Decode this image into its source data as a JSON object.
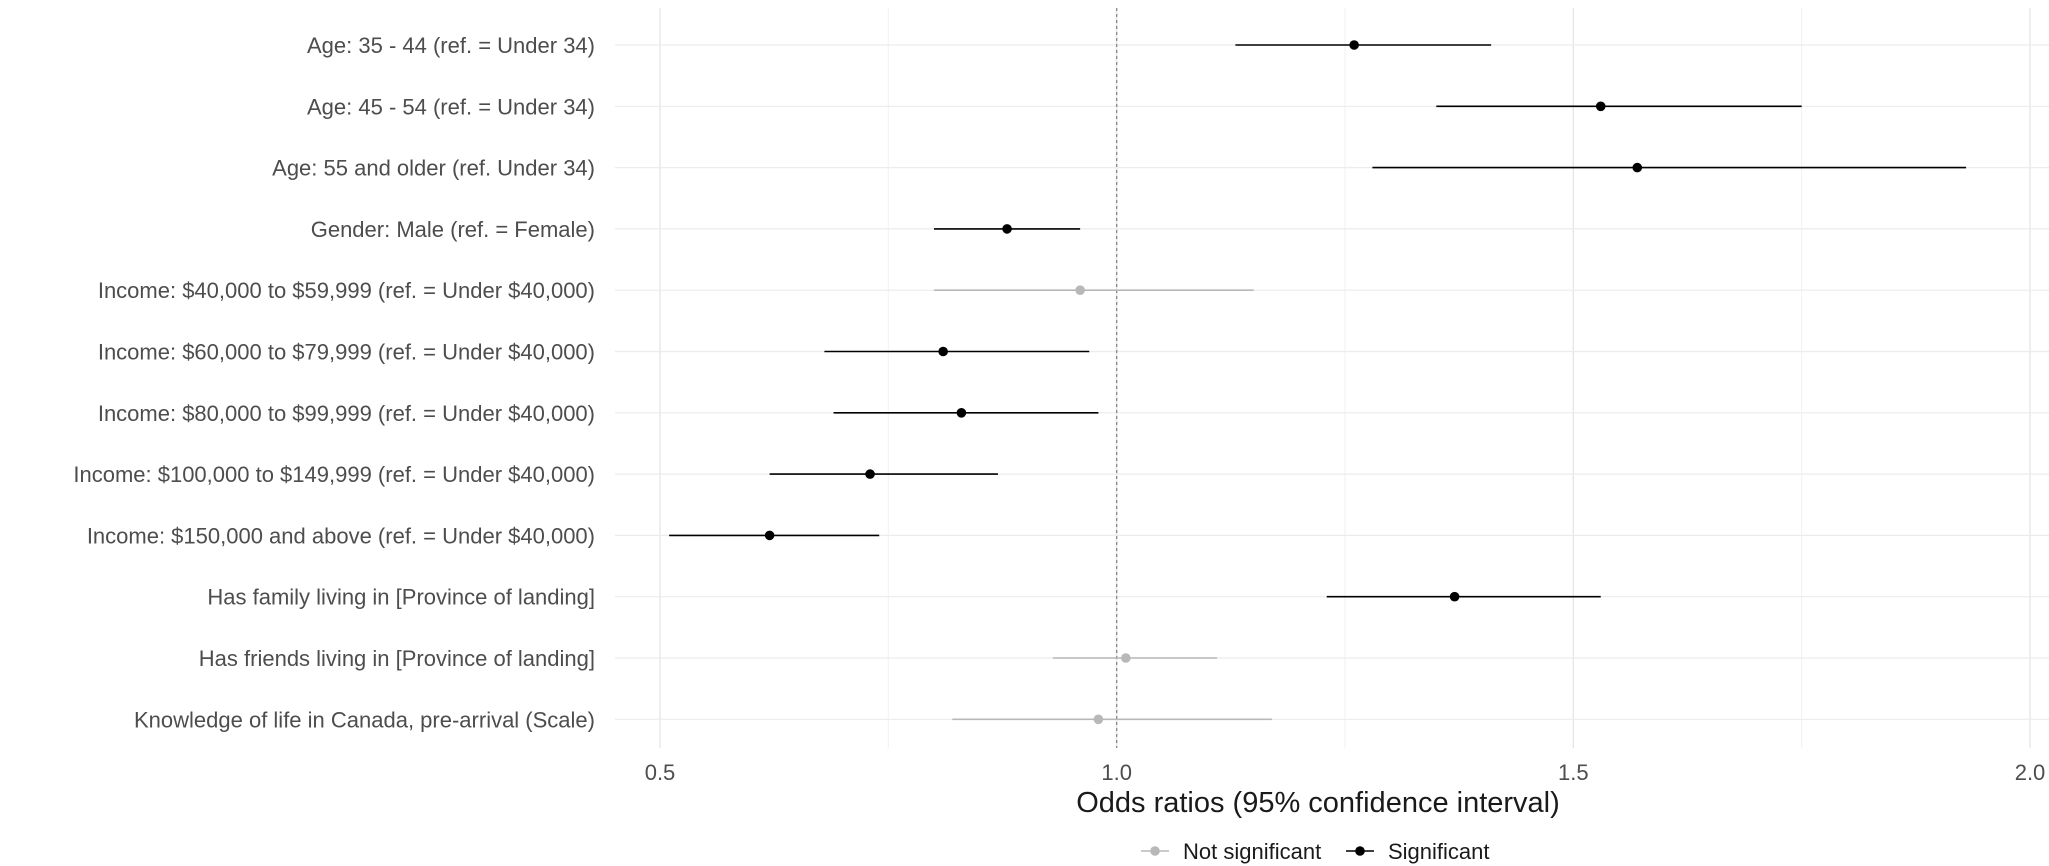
{
  "chart_data": {
    "type": "scatter",
    "subtype": "forest-plot",
    "title": "",
    "xlabel": "Odds ratios (95% confidence interval)",
    "ylabel": "",
    "xlim": [
      0.5,
      2.0
    ],
    "x_ticks": [
      "0.5",
      "1.0",
      "1.5",
      "2.0"
    ],
    "reference_line": 1.0,
    "grid": true,
    "legend_position": "bottom",
    "legend": [
      {
        "key": "not_sig",
        "label": "Not significant",
        "color": "#b8b8b8"
      },
      {
        "key": "sig",
        "label": "Significant",
        "color": "#000000"
      }
    ],
    "rows": [
      {
        "label": "Age: 35 - 44 (ref. = Under 34)",
        "or": 1.26,
        "lo": 1.13,
        "hi": 1.41,
        "significant": true
      },
      {
        "label": "Age: 45 - 54 (ref. = Under 34)",
        "or": 1.53,
        "lo": 1.35,
        "hi": 1.75,
        "significant": true
      },
      {
        "label": "Age: 55 and older (ref. Under 34)",
        "or": 1.57,
        "lo": 1.28,
        "hi": 1.93,
        "significant": true
      },
      {
        "label": "Gender: Male (ref. = Female)",
        "or": 0.88,
        "lo": 0.8,
        "hi": 0.96,
        "significant": true
      },
      {
        "label": "Income: $40,000 to $59,999 (ref. = Under $40,000)",
        "or": 0.96,
        "lo": 0.8,
        "hi": 1.15,
        "significant": false
      },
      {
        "label": "Income: $60,000 to $79,999 (ref. = Under $40,000)",
        "or": 0.81,
        "lo": 0.68,
        "hi": 0.97,
        "significant": true
      },
      {
        "label": "Income: $80,000 to $99,999 (ref. = Under $40,000)",
        "or": 0.83,
        "lo": 0.69,
        "hi": 0.98,
        "significant": true
      },
      {
        "label": "Income: $100,000 to $149,999 (ref. = Under $40,000)",
        "or": 0.73,
        "lo": 0.62,
        "hi": 0.87,
        "significant": true
      },
      {
        "label": "Income: $150,000 and above (ref. = Under $40,000)",
        "or": 0.62,
        "lo": 0.51,
        "hi": 0.74,
        "significant": true
      },
      {
        "label": "Has family living in [Province of landing]",
        "or": 1.37,
        "lo": 1.23,
        "hi": 1.53,
        "significant": true
      },
      {
        "label": "Has friends living in [Province of landing]",
        "or": 1.01,
        "lo": 0.93,
        "hi": 1.11,
        "significant": false
      },
      {
        "label": "Knowledge of life in Canada, pre-arrival (Scale)",
        "or": 0.98,
        "lo": 0.82,
        "hi": 1.17,
        "significant": false
      }
    ]
  }
}
